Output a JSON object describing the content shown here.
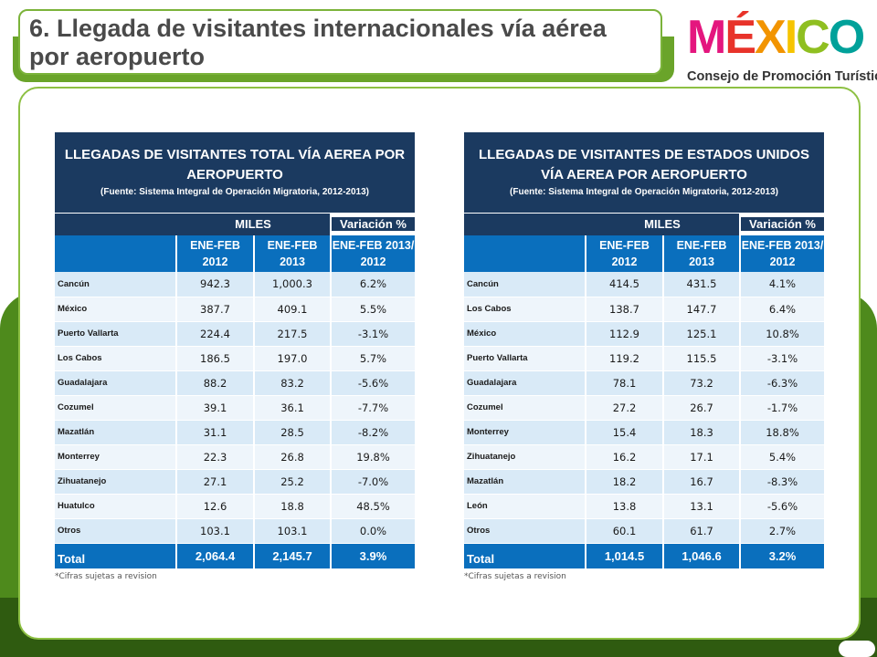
{
  "title": "6. Llegada de visitantes internacionales vía aérea por aeropuerto",
  "logo": {
    "letters": [
      {
        "ch": "M",
        "color": "#e4167e"
      },
      {
        "ch": "É",
        "color": "#e8332a"
      },
      {
        "ch": "X",
        "color": "#f29400"
      },
      {
        "ch": "I",
        "color": "#f6c400"
      },
      {
        "ch": "C",
        "color": "#8fbf21"
      },
      {
        "ch": "O",
        "color": "#00a19a"
      }
    ],
    "subtitle": "Consejo de Promoción Turística"
  },
  "table_total": {
    "title": "LLEGADAS DE VISITANTES TOTAL VÍA AEREA POR AEROPUERTO",
    "source": "(Fuente: Sistema Integral de Operación Migratoria, 2012-2013)",
    "miles": "MILES",
    "variacion": "Variación %",
    "col1": "ENE-FEB 2012",
    "col2": "ENE-FEB 2013",
    "col3": "ENE-FEB 2013/ 2012",
    "rows": [
      {
        "name": "Cancún",
        "v2012": "942.3",
        "v2013": "1,000.3",
        "var": "6.2%"
      },
      {
        "name": "México",
        "v2012": "387.7",
        "v2013": "409.1",
        "var": "5.5%"
      },
      {
        "name": "Puerto Vallarta",
        "v2012": "224.4",
        "v2013": "217.5",
        "var": "-3.1%"
      },
      {
        "name": "Los Cabos",
        "v2012": "186.5",
        "v2013": "197.0",
        "var": "5.7%"
      },
      {
        "name": "Guadalajara",
        "v2012": "88.2",
        "v2013": "83.2",
        "var": "-5.6%"
      },
      {
        "name": "Cozumel",
        "v2012": "39.1",
        "v2013": "36.1",
        "var": "-7.7%"
      },
      {
        "name": "Mazatlán",
        "v2012": "31.1",
        "v2013": "28.5",
        "var": "-8.2%"
      },
      {
        "name": "Monterrey",
        "v2012": "22.3",
        "v2013": "26.8",
        "var": "19.8%"
      },
      {
        "name": "Zihuatanejo",
        "v2012": "27.1",
        "v2013": "25.2",
        "var": "-7.0%"
      },
      {
        "name": "Huatulco",
        "v2012": "12.6",
        "v2013": "18.8",
        "var": "48.5%"
      },
      {
        "name": "Otros",
        "v2012": "103.1",
        "v2013": "103.1",
        "var": "0.0%"
      }
    ],
    "total": {
      "name": "Total",
      "v2012": "2,064.4",
      "v2013": "2,145.7",
      "var": "3.9%"
    },
    "note": "*Cifras sujetas a revision"
  },
  "table_usa": {
    "title": "LLEGADAS DE VISITANTES DE ESTADOS UNIDOS VÍA AEREA POR AEROPUERTO",
    "source": "(Fuente: Sistema Integral de Operación Migratoria, 2012-2013)",
    "miles": "MILES",
    "variacion": "Variación %",
    "col1": "ENE-FEB 2012",
    "col2": "ENE-FEB 2013",
    "col3": "ENE-FEB 2013/ 2012",
    "rows": [
      {
        "name": "Cancún",
        "v2012": "414.5",
        "v2013": "431.5",
        "var": "4.1%"
      },
      {
        "name": "Los Cabos",
        "v2012": "138.7",
        "v2013": "147.7",
        "var": "6.4%"
      },
      {
        "name": "México",
        "v2012": "112.9",
        "v2013": "125.1",
        "var": "10.8%"
      },
      {
        "name": "Puerto Vallarta",
        "v2012": "119.2",
        "v2013": "115.5",
        "var": "-3.1%"
      },
      {
        "name": "Guadalajara",
        "v2012": "78.1",
        "v2013": "73.2",
        "var": "-6.3%"
      },
      {
        "name": "Cozumel",
        "v2012": "27.2",
        "v2013": "26.7",
        "var": "-1.7%"
      },
      {
        "name": "Monterrey",
        "v2012": "15.4",
        "v2013": "18.3",
        "var": "18.8%"
      },
      {
        "name": "Zihuatanejo",
        "v2012": "16.2",
        "v2013": "17.1",
        "var": "5.4%"
      },
      {
        "name": "Mazatlán",
        "v2012": "18.2",
        "v2013": "16.7",
        "var": "-8.3%"
      },
      {
        "name": "León",
        "v2012": "13.8",
        "v2013": "13.1",
        "var": "-5.6%"
      },
      {
        "name": "Otros",
        "v2012": "60.1",
        "v2013": "61.7",
        "var": "2.7%"
      }
    ],
    "total": {
      "name": "Total",
      "v2012": "1,014.5",
      "v2013": "1,046.6",
      "var": "3.2%"
    },
    "note": "*Cifras sujetas a revision"
  }
}
